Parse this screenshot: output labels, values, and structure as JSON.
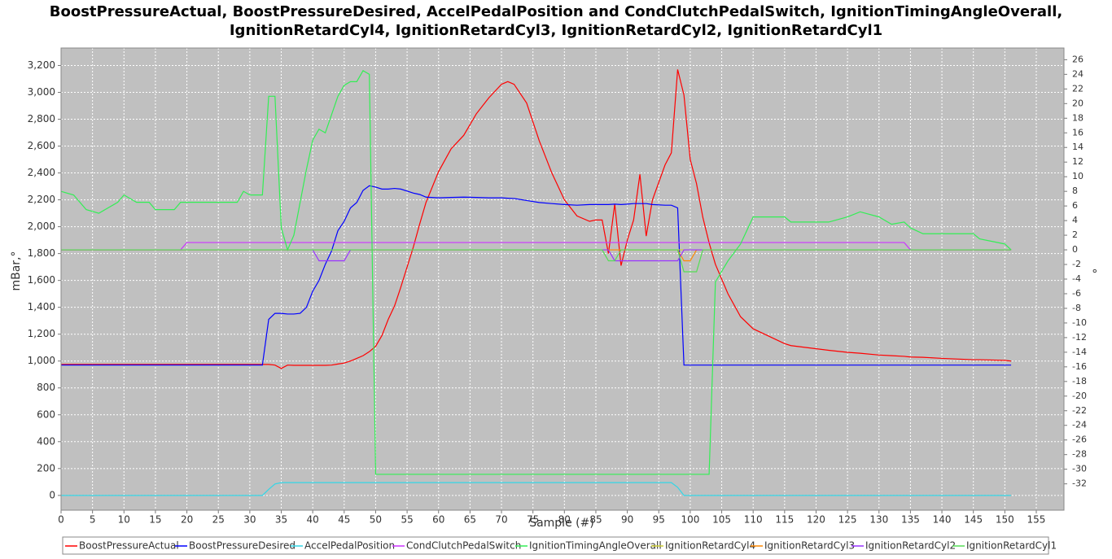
{
  "chart_data": {
    "type": "line",
    "title": [
      "BoostPressureActual, BoostPressureDesired, AccelPedalPosition and CondClutchPedalSwitch, IgnitionTimingAngleOverall,",
      "IgnitionRetardCyl4, IgnitionRetardCyl3, IgnitionRetardCyl2, IgnitionRetardCyl1"
    ],
    "x_label": "Sample (#)",
    "y_label": "mBar,°",
    "y2_label": "°",
    "xlim": [
      0,
      159.4
    ],
    "xticks": [
      0,
      5,
      10,
      15,
      20,
      25,
      30,
      35,
      40,
      45,
      50,
      55,
      60,
      65,
      70,
      75,
      80,
      85,
      90,
      95,
      100,
      105,
      110,
      115,
      120,
      125,
      130,
      135,
      140,
      145,
      150,
      155
    ],
    "ylim": [
      -110,
      3330
    ],
    "yticks": [
      0,
      200,
      400,
      600,
      800,
      {
        "value": 1000,
        "label": "1,000"
      },
      {
        "value": 1200,
        "label": "1,200"
      },
      {
        "value": 1400,
        "label": "1,400"
      },
      {
        "value": 1600,
        "label": "1,600"
      },
      {
        "value": 1800,
        "label": "1,800"
      },
      {
        "value": 2000,
        "label": "2,000"
      },
      {
        "value": 2200,
        "label": "2,200"
      },
      {
        "value": 2400,
        "label": "2,400"
      },
      {
        "value": 2600,
        "label": "2,600"
      },
      {
        "value": 2800,
        "label": "2,800"
      },
      {
        "value": 3000,
        "label": "3,000"
      },
      {
        "value": 3200,
        "label": "3,200"
      }
    ],
    "y2lim": [
      -35.6,
      27.6
    ],
    "y2ticks": [
      -32,
      -30,
      -28,
      -26,
      -24,
      -22,
      -20,
      -18,
      -16,
      -14,
      -12,
      -10,
      -8,
      -6,
      -4,
      -2,
      0,
      2,
      4,
      6,
      8,
      10,
      12,
      14,
      16,
      18,
      20,
      22,
      24,
      26
    ],
    "grid": true,
    "x": [
      0,
      2,
      4,
      6,
      9,
      10,
      12,
      14,
      15,
      18,
      19,
      20,
      28,
      29,
      30,
      32,
      33,
      34,
      35,
      36,
      37,
      38,
      39,
      40,
      41,
      42,
      43,
      44,
      45,
      46,
      47,
      48,
      49,
      50,
      51,
      52,
      53,
      54,
      56,
      57,
      58,
      60,
      62,
      64,
      66,
      68,
      70,
      71,
      72,
      74,
      76,
      78,
      80,
      82,
      84,
      85,
      86,
      87,
      88,
      89,
      90,
      91,
      92,
      93,
      94,
      96,
      97,
      98,
      99,
      100,
      101,
      102,
      103,
      104,
      106,
      108,
      110,
      115,
      116,
      122,
      125,
      127,
      130,
      132,
      134,
      135,
      137,
      140,
      145,
      146,
      150,
      151
    ],
    "series": [
      {
        "name": "BoostPressureActual",
        "color": "#ff0000",
        "axis": "y",
        "values": [
          975,
          975,
          975,
          975,
          975,
          975,
          975,
          975,
          975,
          975,
          975,
          975,
          975,
          975,
          975,
          975,
          975,
          970,
          945,
          970,
          968,
          968,
          968,
          968,
          968,
          968,
          970,
          978,
          985,
          1000,
          1020,
          1040,
          1070,
          1110,
          1190,
          1310,
          1410,
          1550,
          1850,
          2020,
          2180,
          2410,
          2580,
          2680,
          2840,
          2960,
          3060,
          3080,
          3060,
          2920,
          2640,
          2400,
          2200,
          2080,
          2040,
          2050,
          2050,
          1800,
          2170,
          1710,
          1900,
          2050,
          2390,
          1930,
          2200,
          2460,
          2550,
          3170,
          2980,
          2500,
          2320,
          2070,
          1880,
          1720,
          1500,
          1330,
          1240,
          1130,
          1115,
          1080,
          1065,
          1058,
          1045,
          1040,
          1035,
          1030,
          1028,
          1020,
          1010,
          1010,
          1005,
          1000
        ]
      },
      {
        "name": "BoostPressureDesired",
        "color": "#0000ff",
        "axis": "y",
        "values": [
          970,
          970,
          970,
          970,
          970,
          970,
          970,
          970,
          970,
          970,
          970,
          970,
          970,
          970,
          970,
          970,
          1310,
          1355,
          1355,
          1350,
          1350,
          1355,
          1400,
          1520,
          1600,
          1720,
          1820,
          1970,
          2040,
          2140,
          2180,
          2270,
          2305,
          2295,
          2280,
          2280,
          2285,
          2280,
          2250,
          2240,
          2220,
          2215,
          2218,
          2220,
          2218,
          2215,
          2215,
          2212,
          2210,
          2195,
          2180,
          2172,
          2165,
          2160,
          2165,
          2165,
          2165,
          2165,
          2168,
          2165,
          2168,
          2172,
          2172,
          2172,
          2165,
          2160,
          2160,
          2140,
          970,
          970,
          970,
          970,
          970,
          970,
          970,
          970,
          970,
          970,
          970,
          970,
          970,
          970,
          970,
          970,
          970,
          970,
          970,
          970,
          970,
          970,
          970,
          970
        ]
      },
      {
        "name": "AccelPedalPosition",
        "color": "#33d6e6",
        "axis": "y",
        "values": [
          0,
          0,
          0,
          0,
          0,
          0,
          0,
          0,
          0,
          0,
          0,
          0,
          0,
          0,
          0,
          0,
          45,
          85,
          95,
          95,
          95,
          95,
          95,
          95,
          95,
          95,
          95,
          95,
          95,
          95,
          95,
          95,
          95,
          95,
          95,
          95,
          95,
          95,
          95,
          95,
          95,
          95,
          95,
          95,
          95,
          95,
          95,
          95,
          95,
          95,
          95,
          95,
          95,
          95,
          95,
          95,
          95,
          95,
          95,
          95,
          95,
          95,
          95,
          95,
          95,
          95,
          95,
          60,
          0,
          0,
          0,
          0,
          0,
          0,
          0,
          0,
          0,
          0,
          0,
          0,
          0,
          0,
          0,
          0,
          0,
          0,
          0,
          0,
          0,
          0,
          0,
          0
        ]
      },
      {
        "name": "CondClutchPedalSwitch",
        "color": "#cc33ff",
        "axis": "y2",
        "values": [
          0,
          0,
          0,
          0,
          0,
          0,
          0,
          0,
          0,
          0,
          0,
          1,
          1,
          1,
          1,
          1,
          1,
          1,
          1,
          1,
          1,
          1,
          1,
          1,
          1,
          1,
          1,
          1,
          1,
          1,
          1,
          1,
          1,
          1,
          1,
          1,
          1,
          1,
          1,
          1,
          1,
          1,
          1,
          1,
          1,
          1,
          1,
          1,
          1,
          1,
          1,
          1,
          1,
          1,
          1,
          1,
          1,
          1,
          1,
          1,
          1,
          1,
          1,
          1,
          1,
          1,
          1,
          1,
          1,
          1,
          1,
          1,
          1,
          1,
          1,
          1,
          1,
          1,
          1,
          1,
          1,
          1,
          1,
          1,
          1,
          0,
          0,
          0,
          0,
          0,
          0,
          0
        ]
      },
      {
        "name": "IgnitionTimingAngleOverall",
        "color": "#33ee55",
        "axis": "y2",
        "values": [
          8,
          7.5,
          5.5,
          5,
          6.5,
          7.5,
          6.5,
          6.5,
          5.5,
          5.5,
          6.5,
          6.5,
          6.5,
          8,
          7.5,
          7.5,
          21,
          21,
          3,
          0,
          2,
          6.5,
          11,
          15,
          16.5,
          16,
          18.5,
          21,
          22.5,
          23,
          23,
          24.5,
          24,
          -30.7,
          -30.7,
          -30.7,
          -30.7,
          -30.7,
          -30.7,
          -30.7,
          -30.7,
          -30.7,
          -30.7,
          -30.7,
          -30.7,
          -30.7,
          -30.7,
          -30.7,
          -30.7,
          -30.7,
          -30.7,
          -30.7,
          -30.7,
          -30.7,
          -30.7,
          -30.7,
          -30.7,
          -30.7,
          -30.7,
          -30.7,
          -30.7,
          -30.7,
          -30.7,
          -30.7,
          -30.7,
          -30.7,
          -30.7,
          -30.7,
          -30.7,
          -30.7,
          -30.7,
          -30.7,
          -30.7,
          -4.4,
          -1.5,
          0.8,
          4.5,
          4.5,
          3.8,
          3.8,
          4.5,
          5.2,
          4.5,
          3.5,
          3.8,
          3,
          2.2,
          2.2,
          2.2,
          1.5,
          0.8,
          0
        ]
      },
      {
        "name": "IgnitionRetardCyl4",
        "color": "#cccc33",
        "axis": "y2",
        "values": [
          0,
          0,
          0,
          0,
          0,
          0,
          0,
          0,
          0,
          0,
          0,
          0,
          0,
          0,
          0,
          0,
          0,
          0,
          0,
          0,
          0,
          0,
          0,
          0,
          0,
          0,
          0,
          0,
          0,
          0,
          0,
          0,
          0,
          0,
          0,
          0,
          0,
          0,
          0,
          0,
          0,
          0,
          0,
          0,
          0,
          0,
          0,
          0,
          0,
          0,
          0,
          0,
          0,
          0,
          0,
          0,
          0,
          0,
          0,
          0,
          0,
          0,
          0,
          0,
          0,
          0,
          0,
          0,
          0,
          0,
          0,
          0,
          0,
          0,
          0,
          0,
          0,
          0,
          0,
          0,
          0,
          0,
          0,
          0,
          0,
          0,
          0,
          0,
          0,
          0,
          0,
          0
        ]
      },
      {
        "name": "IgnitionRetardCyl3",
        "color": "#ff8800",
        "axis": "y2",
        "values": [
          0,
          0,
          0,
          0,
          0,
          0,
          0,
          0,
          0,
          0,
          0,
          0,
          0,
          0,
          0,
          0,
          0,
          0,
          0,
          0,
          0,
          0,
          0,
          0,
          0,
          0,
          0,
          0,
          0,
          0,
          0,
          0,
          0,
          0,
          0,
          0,
          0,
          0,
          0,
          0,
          0,
          0,
          0,
          0,
          0,
          0,
          0,
          0,
          0,
          0,
          0,
          0,
          0,
          0,
          0,
          0,
          0,
          0,
          0,
          0,
          0,
          0,
          0,
          0,
          0,
          0,
          0,
          0,
          -1.5,
          -1.5,
          0,
          0,
          0,
          0,
          0,
          0,
          0,
          0,
          0,
          0,
          0,
          0,
          0,
          0,
          0,
          0,
          0,
          0,
          0,
          0,
          0,
          0
        ]
      },
      {
        "name": "IgnitionRetardCyl2",
        "color": "#9933ff",
        "axis": "y2",
        "values": [
          0,
          0,
          0,
          0,
          0,
          0,
          0,
          0,
          0,
          0,
          0,
          0,
          0,
          0,
          0,
          0,
          0,
          0,
          0,
          0,
          0,
          0,
          0,
          0,
          -1.5,
          -1.5,
          -1.5,
          -1.5,
          -1.5,
          0,
          0,
          0,
          0,
          0,
          0,
          0,
          0,
          0,
          0,
          0,
          0,
          0,
          0,
          0,
          0,
          0,
          0,
          0,
          0,
          0,
          0,
          0,
          0,
          0,
          0,
          0,
          0,
          0,
          -1.5,
          -1.5,
          -1.5,
          -1.5,
          -1.5,
          -1.5,
          -1.5,
          -1.5,
          -1.5,
          -1.5,
          0,
          0,
          0,
          0,
          0,
          0,
          0,
          0,
          0,
          0,
          0,
          0,
          0,
          0,
          0,
          0,
          0,
          0,
          0,
          0,
          0,
          0,
          0,
          0
        ]
      },
      {
        "name": "IgnitionRetardCyl1",
        "color": "#55dd55",
        "axis": "y2",
        "values": [
          0,
          0,
          0,
          0,
          0,
          0,
          0,
          0,
          0,
          0,
          0,
          0,
          0,
          0,
          0,
          0,
          0,
          0,
          0,
          0,
          0,
          0,
          0,
          0,
          0,
          0,
          0,
          0,
          0,
          0,
          0,
          0,
          0,
          0,
          0,
          0,
          0,
          0,
          0,
          0,
          0,
          0,
          0,
          0,
          0,
          0,
          0,
          0,
          0,
          0,
          0,
          0,
          0,
          0,
          0,
          0,
          0,
          -1.5,
          -1.5,
          0,
          0,
          0,
          0,
          0,
          0,
          0,
          0,
          0,
          -3,
          -3,
          -3,
          0,
          0,
          0,
          0,
          0,
          0,
          0,
          0,
          0,
          0,
          0,
          0,
          0,
          0,
          0,
          0,
          0,
          0,
          0,
          0,
          0
        ]
      }
    ]
  }
}
